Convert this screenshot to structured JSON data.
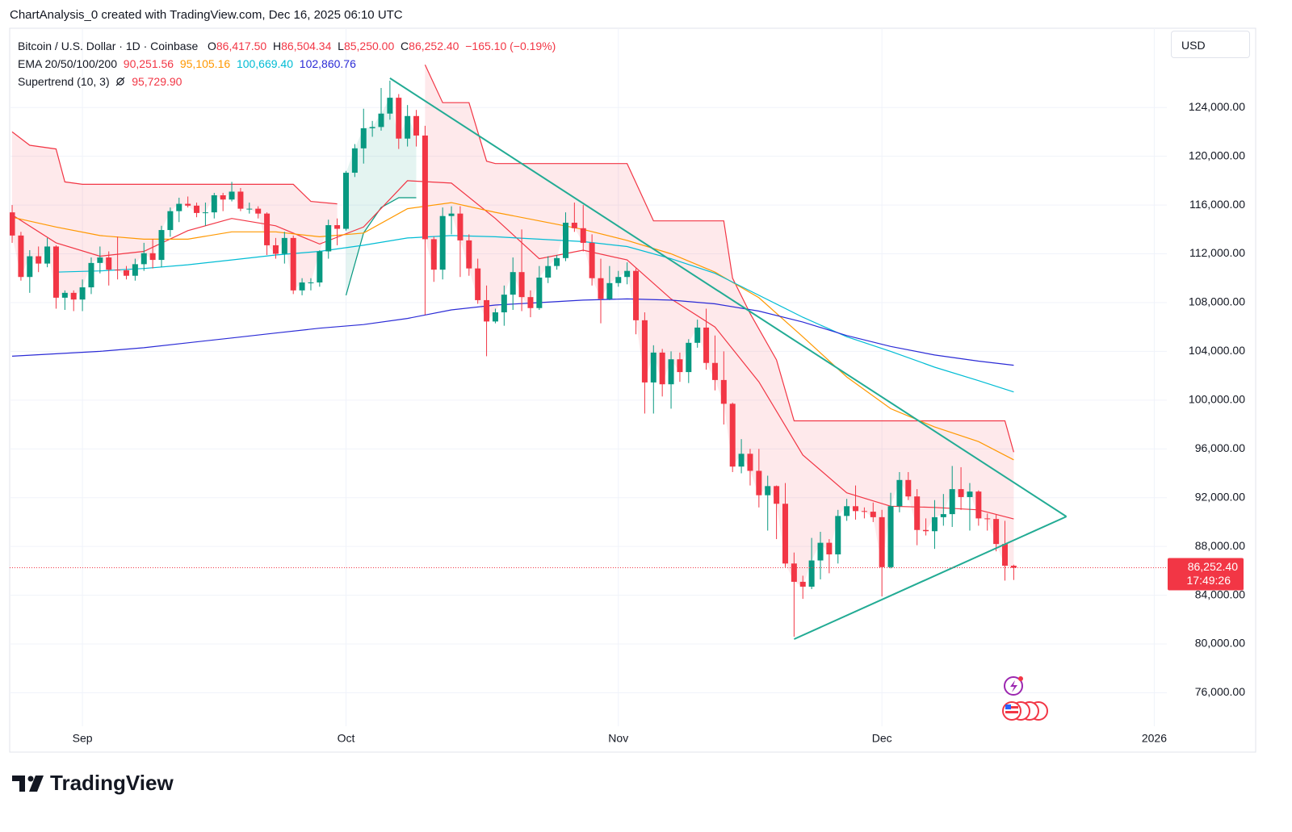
{
  "header": "ChartAnalysis_0 created with TradingView.com, Dec 16, 2025 06:10 UTC",
  "watermark": "TradingView",
  "chart_data": {
    "type": "candlestick",
    "currency": "USD",
    "legend": {
      "symbol": "Bitcoin / U.S. Dollar · 1D · Coinbase",
      "ohlc": [
        {
          "key": "O",
          "value": 86417.5,
          "label": "86,417.50"
        },
        {
          "key": "H",
          "value": 86504.34,
          "label": "86,504.34"
        },
        {
          "key": "L",
          "value": 85250,
          "label": "85,250.00"
        },
        {
          "key": "C",
          "value": 86252.4,
          "label": "86,252.40"
        }
      ],
      "change": {
        "value": -165.1,
        "label": "−165.10"
      },
      "change_pct": {
        "value": -0.19,
        "label": "(−0.19%)"
      },
      "ema_label": "EMA 20/50/100/200"
    },
    "up_color": "#089981",
    "down_color": "#f23645",
    "categories": [
      null,
      null,
      null,
      null,
      null,
      null,
      null,
      null,
      null,
      null,
      null,
      null,
      null,
      null,
      null,
      null,
      null,
      null,
      null,
      null,
      null,
      null,
      null,
      null,
      null,
      null,
      null,
      null,
      null,
      null,
      null,
      null,
      null,
      null,
      null,
      null,
      null,
      null,
      null,
      null,
      null,
      null,
      null,
      null,
      null,
      null,
      null,
      null,
      null,
      null,
      null,
      null,
      null,
      null,
      null,
      null,
      null,
      null,
      null,
      null,
      null,
      null,
      null,
      null,
      null,
      null,
      null,
      null,
      null,
      null,
      null,
      null,
      null,
      null,
      null,
      null,
      null,
      null,
      null,
      null,
      null,
      null,
      null,
      null,
      null,
      null,
      null,
      null,
      null,
      null,
      null,
      null,
      null,
      null,
      null,
      null,
      null,
      null,
      null,
      null,
      null,
      null,
      null,
      null,
      null,
      null,
      null,
      null,
      null,
      null,
      null,
      null,
      null,
      null,
      null
    ],
    "open": [
      115400,
      113500,
      110100,
      111800,
      111200,
      112600,
      108400,
      108800,
      108250,
      109250,
      111250,
      111700,
      110700,
      110650,
      110200,
      111150,
      112050,
      111500,
      113950,
      115500,
      116100,
      115950,
      115350,
      115400,
      116800,
      116450,
      117100,
      115700,
      115700,
      115300,
      112700,
      112000,
      113300,
      109000,
      109650,
      109650,
      112200,
      114350,
      114050,
      118650,
      120650,
      122300,
      122400,
      123500,
      124800,
      121450,
      123300,
      121700,
      113200,
      110700,
      115100,
      115300,
      113100,
      110800,
      108200,
      106450,
      107200,
      108650,
      110500,
      108450,
      107550,
      110050,
      111000,
      111650,
      114550,
      114100,
      112900,
      110000,
      108300,
      109600,
      110100,
      110600,
      106550,
      101450,
      103900,
      101300,
      103350,
      102300,
      104700,
      105950,
      103050,
      101650,
      99700,
      94550,
      95600,
      94200,
      92200,
      92950,
      91500,
      86600,
      85100,
      84700,
      86850,
      88300,
      87350,
      90500,
      91300,
      90900,
      90850,
      90400,
      86300,
      91300,
      93450,
      92100,
      89350,
      89250,
      90400,
      90650,
      92700,
      92050,
      92500,
      90300,
      90250,
      88200,
      86417.5
    ],
    "high": [
      116000,
      113800,
      112300,
      112600,
      113300,
      112700,
      109000,
      109000,
      109900,
      111700,
      112600,
      112200,
      113400,
      111000,
      111600,
      112900,
      113200,
      114300,
      115800,
      116600,
      116700,
      116200,
      116200,
      117000,
      117000,
      117900,
      117400,
      116200,
      115900,
      115400,
      113300,
      113800,
      113500,
      110000,
      110000,
      112300,
      114800,
      114900,
      118800,
      121000,
      123900,
      122900,
      125600,
      126200,
      125100,
      124200,
      123800,
      122500,
      113400,
      115800,
      115900,
      115900,
      113600,
      111600,
      109400,
      107500,
      109400,
      111700,
      114000,
      109000,
      111000,
      111800,
      111900,
      115400,
      116200,
      116000,
      113600,
      111600,
      111000,
      110600,
      111300,
      110800,
      107200,
      104500,
      104200,
      104000,
      103900,
      105000,
      106600,
      107500,
      105300,
      104000,
      99800,
      96800,
      96000,
      96000,
      93800,
      93000,
      93200,
      87500,
      85600,
      88700,
      89200,
      88600,
      91000,
      91900,
      93000,
      91200,
      91600,
      91000,
      92400,
      94100,
      94100,
      92700,
      90300,
      91800,
      92300,
      94600,
      94500,
      93200,
      92600,
      90700,
      90600,
      90100,
      86504.34
    ],
    "low": [
      112900,
      109800,
      108800,
      110500,
      110900,
      107500,
      107400,
      107300,
      107300,
      108700,
      110400,
      109400,
      109900,
      109900,
      109800,
      110600,
      110800,
      110900,
      113400,
      114600,
      115800,
      115000,
      114300,
      114900,
      115500,
      116300,
      115500,
      115300,
      114900,
      111900,
      111600,
      111200,
      108700,
      108600,
      109000,
      109300,
      111600,
      112700,
      113900,
      118300,
      119400,
      121600,
      122100,
      123000,
      120600,
      120800,
      120800,
      107000,
      109700,
      109900,
      113600,
      110100,
      110200,
      107900,
      103600,
      106300,
      106100,
      107400,
      107300,
      106800,
      107400,
      109600,
      110700,
      111400,
      113800,
      112200,
      109400,
      106300,
      108200,
      109300,
      109500,
      105400,
      98900,
      98900,
      100300,
      99300,
      101500,
      101400,
      104300,
      102500,
      100800,
      98000,
      94100,
      94000,
      93000,
      91200,
      89300,
      88600,
      86300,
      80600,
      83700,
      84500,
      85300,
      85800,
      86600,
      90100,
      90200,
      90300,
      90000,
      83900,
      86200,
      90800,
      91800,
      88100,
      88900,
      87800,
      89700,
      89600,
      91000,
      89300,
      89700,
      89300,
      87600,
      85200,
      85250
    ],
    "close": [
      113500,
      110100,
      111800,
      111200,
      112600,
      108400,
      108800,
      108250,
      109250,
      111250,
      111700,
      110700,
      110650,
      110200,
      111150,
      112050,
      111500,
      113950,
      115500,
      116100,
      115950,
      115350,
      115400,
      116800,
      116450,
      117100,
      115700,
      115700,
      115300,
      112700,
      112000,
      113300,
      109000,
      109650,
      109650,
      112200,
      114350,
      114050,
      118650,
      120650,
      122300,
      122400,
      123500,
      124800,
      121450,
      123300,
      121700,
      113200,
      110700,
      115100,
      115300,
      113100,
      110800,
      108200,
      106450,
      107200,
      108650,
      110500,
      108450,
      107550,
      110050,
      111000,
      111650,
      114550,
      114100,
      112900,
      110000,
      108300,
      109600,
      110100,
      110600,
      106550,
      101450,
      103900,
      101300,
      103350,
      102300,
      104700,
      105950,
      103050,
      101650,
      99700,
      94550,
      95600,
      94200,
      92200,
      92950,
      91500,
      86600,
      85100,
      84700,
      86850,
      88300,
      87350,
      90500,
      91300,
      90900,
      90850,
      90400,
      86300,
      91300,
      93450,
      92100,
      89350,
      89250,
      90400,
      90650,
      92700,
      92050,
      92500,
      90300,
      90250,
      88200,
      86420,
      86252.4
    ],
    "indicators": [
      {
        "color": "#f23645",
        "last": {
          "value": 90251.56,
          "label": "90,251.56"
        },
        "x": [
          0,
          5,
          10,
          15,
          20,
          25,
          30,
          35,
          40,
          45,
          50,
          55,
          60,
          65,
          70,
          75,
          80,
          85,
          90,
          95,
          100,
          105,
          110,
          114
        ],
        "values": [
          115200,
          112900,
          111800,
          112200,
          113900,
          114900,
          114300,
          112800,
          114200,
          118000,
          117800,
          114900,
          111600,
          112300,
          111500,
          108300,
          106000,
          101500,
          95500,
          92400,
          91300,
          91200,
          91000,
          90251.56
        ]
      },
      {
        "color": "#ff9800",
        "last": {
          "value": 95105.16,
          "label": "95,105.16"
        },
        "x": [
          0,
          5,
          10,
          15,
          20,
          25,
          30,
          35,
          40,
          45,
          50,
          55,
          60,
          65,
          70,
          75,
          80,
          85,
          90,
          95,
          100,
          105,
          110,
          114
        ],
        "values": [
          115000,
          114200,
          113500,
          113200,
          113200,
          113800,
          113800,
          113400,
          113700,
          115700,
          116200,
          115400,
          114700,
          114000,
          113100,
          112000,
          110500,
          108400,
          105200,
          101900,
          99300,
          97800,
          96600,
          95105.16
        ]
      },
      {
        "color": "#00bcd4",
        "last": {
          "value": 100669.4,
          "label": "100,669.40"
        },
        "x": [
          5,
          10,
          15,
          20,
          25,
          30,
          35,
          40,
          45,
          50,
          55,
          60,
          65,
          70,
          75,
          80,
          85,
          90,
          95,
          100,
          105,
          110,
          114
        ],
        "values": [
          110500,
          110600,
          110800,
          111100,
          111500,
          111900,
          112200,
          112700,
          113300,
          113500,
          113400,
          113200,
          113000,
          112600,
          111600,
          110400,
          108600,
          106800,
          105200,
          104000,
          102700,
          101600,
          100669.4
        ]
      },
      {
        "color": "#2b2bd6",
        "last": {
          "value": 102860.76,
          "label": "102,860.76"
        },
        "x": [
          0,
          5,
          10,
          15,
          20,
          25,
          30,
          35,
          40,
          45,
          50,
          55,
          60,
          65,
          70,
          75,
          80,
          85,
          90,
          95,
          100,
          105,
          110,
          114
        ],
        "values": [
          103600,
          103800,
          104000,
          104300,
          104700,
          105100,
          105500,
          105900,
          106200,
          106700,
          107400,
          107800,
          108000,
          108200,
          108300,
          108200,
          107900,
          107300,
          106400,
          105300,
          104400,
          103700,
          103200,
          102860.76
        ]
      }
    ],
    "supertrend": {
      "label": "Supertrend (10, 3)",
      "last": {
        "value": 95729.9,
        "label": "95,729.90"
      },
      "segments": [
        {
          "trend": "down",
          "color": "#f23645",
          "x": [
            0,
            2,
            5,
            6,
            8,
            32,
            34,
            37
          ],
          "values": [
            122000,
            120900,
            120600,
            117900,
            117700,
            117700,
            116300,
            116100
          ]
        },
        {
          "trend": "up",
          "color": "#089981",
          "x": [
            38,
            40,
            42,
            44,
            46
          ],
          "values": [
            108600,
            113700,
            115800,
            116600,
            116600
          ]
        },
        {
          "trend": "down",
          "color": "#f23645",
          "x": [
            47,
            49,
            52,
            54,
            55,
            70,
            73,
            81,
            82,
            84,
            87,
            89,
            113,
            114
          ],
          "values": [
            127500,
            124400,
            124400,
            119600,
            119400,
            119400,
            114700,
            114700,
            110000,
            107100,
            103300,
            98300,
            98300,
            95729.9
          ]
        }
      ]
    },
    "trendlines": [
      {
        "color": "#22ab94",
        "x": [
          43,
          120
        ],
        "values": [
          126400,
          90450
        ]
      },
      {
        "color": "#22ab94",
        "x": [
          89,
          120
        ],
        "values": [
          80400,
          90450
        ]
      }
    ],
    "price_tag": {
      "value": 86252.4,
      "label": "86,252.40",
      "countdown": "17:49:26",
      "color": "#f23645"
    },
    "xlim": [
      -0.28,
      131.43
    ],
    "xticks": [
      {
        "value": 8,
        "label": "Sep"
      },
      {
        "value": 38,
        "label": "Oct"
      },
      {
        "value": 69,
        "label": "Nov"
      },
      {
        "value": 99,
        "label": "Dec"
      },
      {
        "value": 130,
        "label": "2026"
      }
    ],
    "ylim": [
      73250,
      130500
    ],
    "yticks": [
      {
        "value": 76000,
        "label": "76,000.00"
      },
      {
        "value": 80000,
        "label": "80,000.00"
      },
      {
        "value": 84000,
        "label": "84,000.00"
      },
      {
        "value": 88000,
        "label": "88,000.00"
      },
      {
        "value": 92000,
        "label": "92,000.00"
      },
      {
        "value": 96000,
        "label": "96,000.00"
      },
      {
        "value": 100000,
        "label": "100,000.00"
      },
      {
        "value": 104000,
        "label": "104,000.00"
      },
      {
        "value": 108000,
        "label": "108,000.00"
      },
      {
        "value": 112000,
        "label": "112,000.00"
      },
      {
        "value": 116000,
        "label": "116,000.00"
      },
      {
        "value": 120000,
        "label": "120,000.00"
      },
      {
        "value": 124000,
        "label": "124,000.00"
      }
    ],
    "grid": true
  }
}
